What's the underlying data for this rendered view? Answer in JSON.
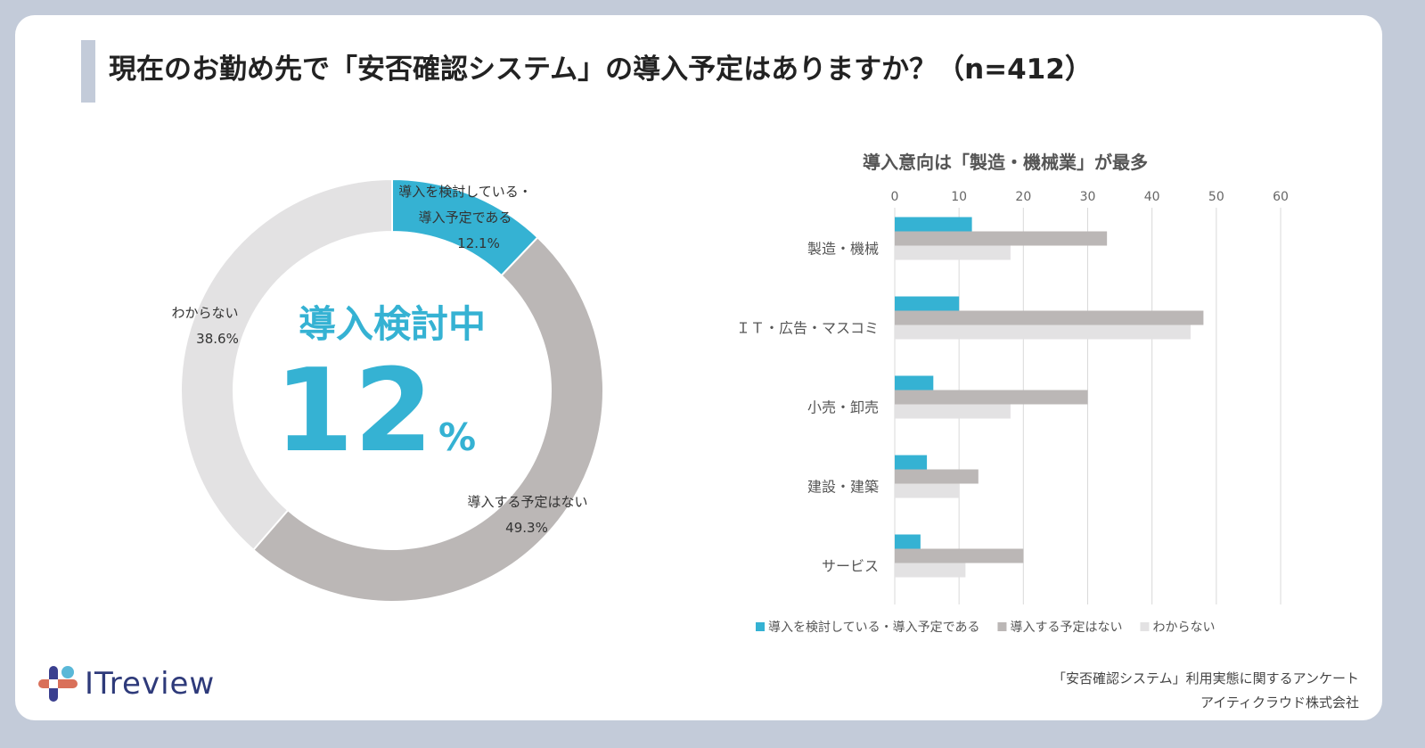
{
  "title": "現在のお勤め先で「安否確認システム」の導入予定はありますか？（n=412）",
  "center": {
    "label": "導入検討中",
    "value": "12",
    "unit": "%"
  },
  "colors": {
    "blue": "#35b2d3",
    "gray": "#bbb7b6",
    "light": "#e3e2e3"
  },
  "chart_data": [
    {
      "type": "pie",
      "donut": true,
      "slices": [
        {
          "label_lines": [
            "導入を検討している・",
            "導入予定である"
          ],
          "value": 12.1,
          "text": "12.1%",
          "color": "#35b2d3"
        },
        {
          "label_lines": [
            "導入する予定はない"
          ],
          "value": 49.3,
          "text": "49.3%",
          "color": "#bbb7b6"
        },
        {
          "label_lines": [
            "わからない"
          ],
          "value": 38.6,
          "text": "38.6%",
          "color": "#e3e2e3"
        }
      ]
    },
    {
      "type": "bar",
      "orientation": "horizontal",
      "title": "導入意向は「製造・機械業」が最多",
      "categories": [
        "製造・機械",
        "ＩＴ・広告・マスコミ",
        "小売・卸売",
        "建設・建築",
        "サービス"
      ],
      "xlim": [
        0,
        60
      ],
      "ticks": [
        "0",
        "10",
        "20",
        "30",
        "40",
        "50",
        "60"
      ],
      "grid": true,
      "legend": "bottom",
      "series": [
        {
          "name": "導入を検討している・導入予定である",
          "color": "#35b2d3",
          "values": [
            12,
            10,
            6,
            5,
            4
          ]
        },
        {
          "name": "導入する予定はない",
          "color": "#bbb7b6",
          "values": [
            33,
            48,
            30,
            13,
            20
          ]
        },
        {
          "name": "わからない",
          "color": "#e3e2e3",
          "values": [
            18,
            46,
            18,
            10,
            11
          ]
        }
      ]
    }
  ],
  "footer": {
    "line1": "「安否確認システム」利用実態に関するアンケート",
    "line2": "アイティクラウド株式会社"
  },
  "logo": {
    "text": "ITreview"
  }
}
